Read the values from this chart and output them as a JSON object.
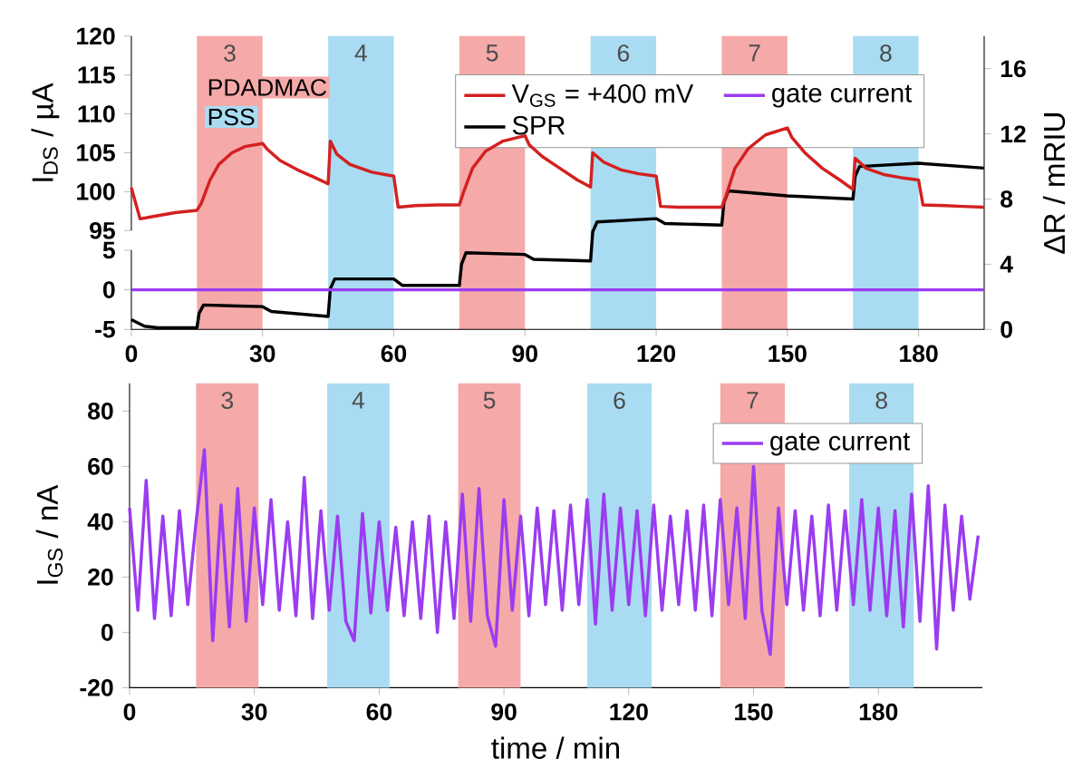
{
  "chart_data": [
    {
      "type": "line",
      "ylabel": "I$_{DS}$ / µA",
      "y2label": "ΔR / mRIU",
      "tick_labels": "y",
      "xlim": [
        0,
        195
      ],
      "ylim": [
        95,
        120
      ],
      "yticks": [
        95,
        100,
        105,
        110,
        115,
        120
      ],
      "y2lim": [
        0,
        18
      ],
      "y2ticks": [
        0,
        4,
        8,
        12,
        16
      ],
      "legend": "top right",
      "annotations": [
        "PDADMAC",
        "PSS"
      ],
      "bands": [
        {
          "axis": "x",
          "from": 15,
          "to": 30,
          "label": "3",
          "color": "#f5a9a9"
        },
        {
          "axis": "x",
          "from": 45,
          "to": 60,
          "label": "4",
          "color": "#a9dcf2"
        },
        {
          "axis": "x",
          "from": 75,
          "to": 90,
          "label": "5",
          "color": "#f5a9a9"
        },
        {
          "axis": "x",
          "from": 105,
          "to": 120,
          "label": "6",
          "color": "#a9dcf2"
        },
        {
          "axis": "x",
          "from": 135,
          "to": 150,
          "label": "7",
          "color": "#f5a9a9"
        },
        {
          "axis": "x",
          "from": 165,
          "to": 180,
          "label": "8",
          "color": "#a9dcf2"
        }
      ],
      "series": [
        {
          "name": "V$_{GS}$ = +400 mV",
          "color": "#d42020",
          "x": [
            0,
            2,
            5,
            10,
            15,
            16,
            18,
            20,
            23,
            26,
            30,
            31,
            34,
            38,
            42,
            45,
            45.5,
            47,
            50,
            55,
            60,
            61,
            65,
            70,
            75,
            76,
            78,
            81,
            85,
            90,
            91,
            94,
            98,
            102,
            105,
            105.5,
            108,
            112,
            116,
            120,
            121,
            125,
            130,
            135,
            136,
            138,
            141,
            145,
            150,
            151,
            154,
            158,
            162,
            165,
            165.5,
            168,
            172,
            176,
            180,
            181,
            186,
            190,
            195
          ],
          "values": [
            100.5,
            96.5,
            96.8,
            97.3,
            97.6,
            98.5,
            101.5,
            103.5,
            105,
            105.8,
            106.2,
            105.5,
            104,
            102.8,
            101.8,
            101,
            106.5,
            104.8,
            103.5,
            102.5,
            102,
            98,
            98.2,
            98.3,
            98.3,
            100,
            103,
            105.2,
            106.5,
            107.2,
            106,
            104.5,
            103,
            101.5,
            100.6,
            105,
            103.8,
            102.8,
            102.3,
            102,
            98.1,
            98,
            98,
            98,
            99.5,
            103,
            105.5,
            107.3,
            108.2,
            107,
            105,
            103,
            101.5,
            100.3,
            104.3,
            103,
            102.2,
            101.8,
            101.5,
            98.3,
            98.2,
            98.1,
            98
          ]
        },
        {
          "name": "SPR",
          "color": "#000000",
          "axis": "y2",
          "x": [
            0,
            3,
            6,
            15,
            15.5,
            16.5,
            30,
            32,
            45,
            45.5,
            46.5,
            60,
            62,
            75,
            75.5,
            76.5,
            90,
            92,
            105,
            105.5,
            106.5,
            120,
            122,
            135,
            135.5,
            136.5,
            150,
            165,
            165.5,
            166.5,
            180,
            195
          ],
          "values": [
            0.6,
            0.2,
            0.1,
            0.1,
            1.0,
            1.5,
            1.4,
            1.1,
            0.8,
            2.5,
            3.1,
            3.1,
            2.7,
            2.7,
            4.0,
            4.7,
            4.6,
            4.3,
            4.2,
            6.0,
            6.6,
            6.8,
            6.5,
            6.4,
            7.8,
            8.5,
            8.2,
            8.0,
            9.4,
            10.0,
            10.2,
            9.9
          ]
        }
      ]
    },
    {
      "type": "line",
      "xlim": [
        0,
        195
      ],
      "xticks": [
        0,
        30,
        60,
        90,
        120,
        150,
        180
      ],
      "ylim": [
        -5,
        5
      ],
      "yticks": [
        -5,
        0,
        5
      ],
      "series": [
        {
          "name": "gate current",
          "color": "#9b3cf0",
          "x": [
            0,
            195
          ],
          "values": [
            0,
            0
          ]
        }
      ]
    },
    {
      "type": "line",
      "xlabel": "time / min",
      "ylabel": "I$_{GS}$ / nA",
      "xlim": [
        0,
        205
      ],
      "xticks": [
        0,
        30,
        60,
        90,
        120,
        150,
        180
      ],
      "ylim": [
        -20,
        90
      ],
      "yticks": [
        -20,
        0,
        20,
        40,
        60,
        80
      ],
      "legend": "top right",
      "bands": [
        {
          "axis": "x",
          "from": 16,
          "to": 31,
          "label": "3",
          "color": "#f5a9a9"
        },
        {
          "axis": "x",
          "from": 47.5,
          "to": 62.5,
          "label": "4",
          "color": "#a9dcf2"
        },
        {
          "axis": "x",
          "from": 79,
          "to": 94,
          "label": "5",
          "color": "#f5a9a9"
        },
        {
          "axis": "x",
          "from": 110,
          "to": 125.5,
          "label": "6",
          "color": "#a9dcf2"
        },
        {
          "axis": "x",
          "from": 142,
          "to": 157.5,
          "label": "7",
          "color": "#f5a9a9"
        },
        {
          "axis": "x",
          "from": 173,
          "to": 188.5,
          "label": "8",
          "color": "#a9dcf2"
        }
      ],
      "series": [
        {
          "name": "gate current",
          "color": "#9b3cf0",
          "x": [
            0,
            2,
            4,
            6,
            8,
            10,
            12,
            14,
            16,
            18,
            20,
            22,
            24,
            26,
            28,
            30,
            32,
            34,
            36,
            38,
            40,
            42,
            44,
            46,
            48,
            50,
            52,
            54,
            56,
            58,
            60,
            62,
            64,
            66,
            68,
            70,
            72,
            74,
            76,
            78,
            80,
            82,
            84,
            86,
            88,
            90,
            92,
            94,
            96,
            98,
            100,
            102,
            104,
            106,
            108,
            110,
            112,
            114,
            116,
            118,
            120,
            122,
            124,
            126,
            128,
            130,
            132,
            134,
            136,
            138,
            140,
            142,
            144,
            146,
            148,
            150,
            152,
            154,
            156,
            158,
            160,
            162,
            164,
            166,
            168,
            170,
            172,
            174,
            176,
            178,
            180,
            182,
            184,
            186,
            188,
            190,
            192,
            194,
            196,
            198,
            200,
            202,
            204
          ],
          "values": [
            45,
            8,
            55,
            5,
            42,
            6,
            44,
            10,
            40,
            66,
            -3,
            46,
            2,
            52,
            4,
            45,
            10,
            48,
            8,
            40,
            6,
            56,
            5,
            44,
            8,
            42,
            4,
            -3,
            43,
            7,
            40,
            8,
            38,
            6,
            40,
            5,
            42,
            0,
            40,
            5,
            50,
            4,
            52,
            6,
            -5,
            48,
            8,
            42,
            6,
            45,
            10,
            44,
            8,
            46,
            10,
            48,
            3,
            50,
            8,
            45,
            10,
            44,
            6,
            46,
            8,
            42,
            10,
            44,
            8,
            46,
            6,
            48,
            10,
            45,
            5,
            60,
            8,
            -8,
            45,
            10,
            44,
            8,
            42,
            6,
            46,
            8,
            44,
            10,
            48,
            8,
            45,
            6,
            44,
            2,
            50,
            4,
            53,
            -6,
            46,
            8,
            42,
            12,
            35
          ]
        }
      ]
    }
  ]
}
